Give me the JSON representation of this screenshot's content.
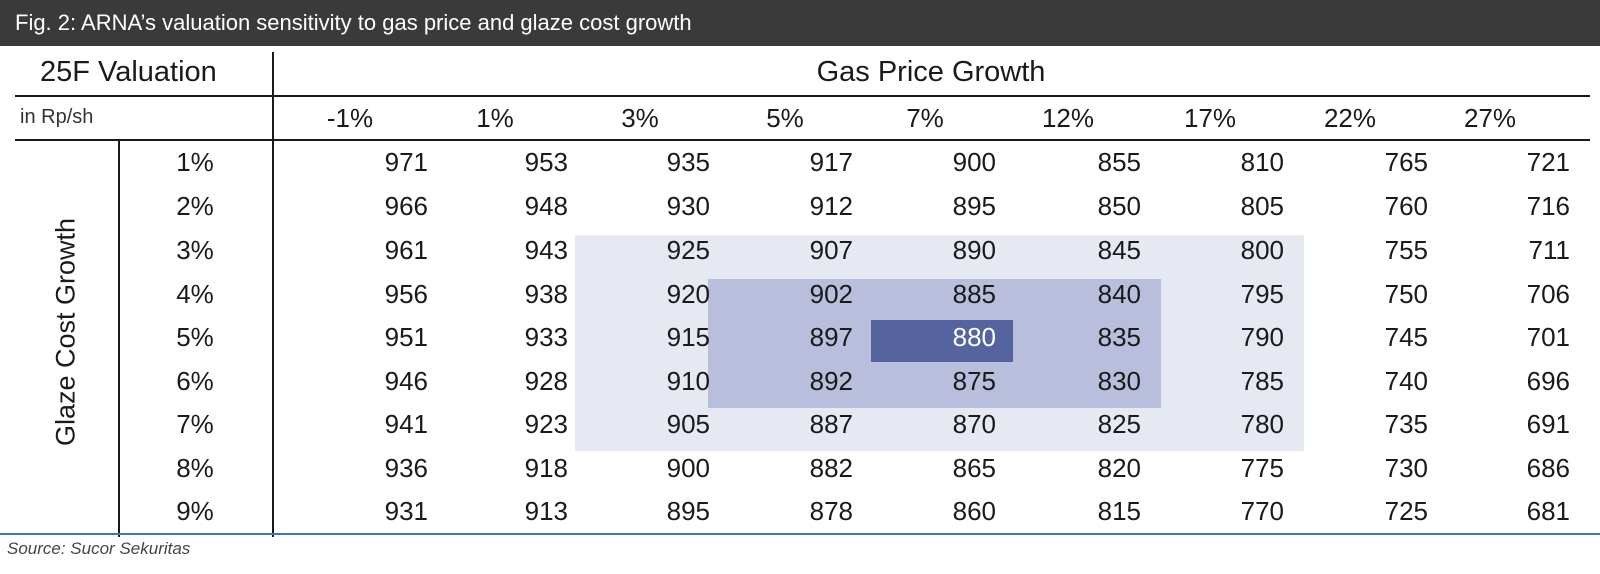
{
  "figure": {
    "title": "Fig. 2: ARNA’s valuation sensitivity to gas price and glaze cost growth",
    "source": "Source: Sucor Sekuritas"
  },
  "table": {
    "corner_label": "25F Valuation",
    "unit_label": "in Rp/sh",
    "column_header": "Gas Price Growth",
    "row_header": "Glaze Cost Growth"
  },
  "chart_data": {
    "type": "table",
    "title": "Fig. 2: ARNA’s valuation sensitivity to gas price and glaze cost growth",
    "xlabel": "Gas Price Growth",
    "ylabel": "Glaze Cost Growth",
    "columns": [
      "-1%",
      "1%",
      "3%",
      "5%",
      "7%",
      "12%",
      "17%",
      "22%",
      "27%"
    ],
    "rows": [
      "1%",
      "2%",
      "3%",
      "4%",
      "5%",
      "6%",
      "7%",
      "8%",
      "9%"
    ],
    "values": [
      [
        971,
        953,
        935,
        917,
        900,
        855,
        810,
        765,
        721
      ],
      [
        966,
        948,
        930,
        912,
        895,
        850,
        805,
        760,
        716
      ],
      [
        961,
        943,
        925,
        907,
        890,
        845,
        800,
        755,
        711
      ],
      [
        956,
        938,
        920,
        902,
        885,
        840,
        795,
        750,
        706
      ],
      [
        951,
        933,
        915,
        897,
        880,
        835,
        790,
        745,
        701
      ],
      [
        946,
        928,
        910,
        892,
        875,
        830,
        785,
        740,
        696
      ],
      [
        941,
        923,
        905,
        887,
        870,
        825,
        780,
        735,
        691
      ],
      [
        936,
        918,
        900,
        882,
        865,
        820,
        775,
        730,
        686
      ],
      [
        931,
        913,
        895,
        878,
        860,
        815,
        770,
        725,
        681
      ]
    ],
    "highlight_colors": {
      "light": "#e6e8f2",
      "medium": "#b8bedb",
      "dark": "#55639f"
    }
  }
}
